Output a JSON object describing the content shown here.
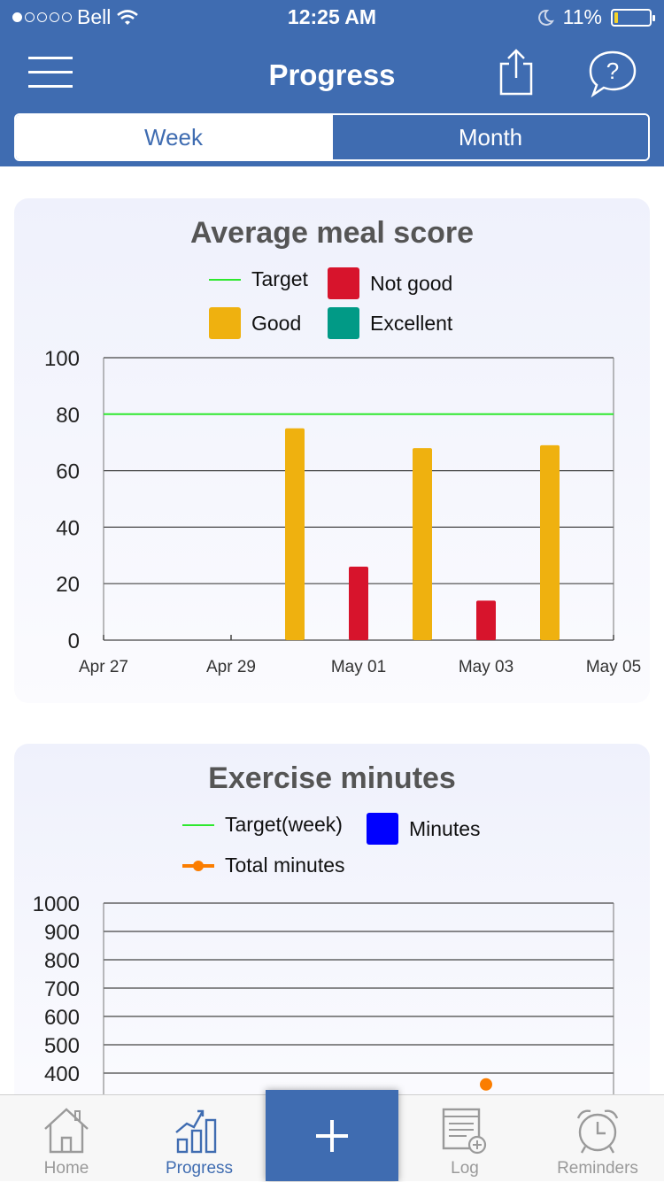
{
  "status_bar": {
    "carrier": "Bell",
    "signal_dots_filled": 1,
    "signal_dots_total": 5,
    "time": "12:25 AM",
    "battery": "11%",
    "battery_level": 0.11
  },
  "nav": {
    "title": "Progress",
    "menu_icon": "hamburger-icon",
    "share_icon": "share-icon",
    "help_icon": "help-bubble-icon"
  },
  "segment": {
    "options": [
      "Week",
      "Month"
    ],
    "selected": "Week"
  },
  "colors": {
    "brand": "#3f6cb1",
    "target": "#2ee82e",
    "not_good": "#d7142c",
    "good": "#efb10f",
    "excellent": "#019a86",
    "minutes": "#0000ff",
    "total_minutes": "#fb7d00"
  },
  "meal_card": {
    "title": "Average meal score",
    "legend": {
      "target": "Target",
      "not_good": "Not good",
      "good": "Good",
      "excellent": "Excellent"
    }
  },
  "exercise_card": {
    "title": "Exercise minutes",
    "legend": {
      "target_week": "Target(week)",
      "minutes": "Minutes",
      "total_minutes": "Total minutes"
    }
  },
  "chart_data": [
    {
      "type": "bar",
      "title": "Average meal score",
      "categories": [
        "Apr 27",
        "Apr 28",
        "Apr 29",
        "Apr 30",
        "May 01",
        "May 02",
        "May 03",
        "May 04",
        "May 05"
      ],
      "x_tick_labels": [
        "Apr 27",
        "Apr 29",
        "May 01",
        "May 03",
        "May 05"
      ],
      "bars": [
        {
          "date": "Apr 30",
          "value": 75,
          "rating": "Good"
        },
        {
          "date": "May 01",
          "value": 26,
          "rating": "Not good"
        },
        {
          "date": "May 02",
          "value": 68,
          "rating": "Good"
        },
        {
          "date": "May 03",
          "value": 14,
          "rating": "Not good"
        },
        {
          "date": "May 04",
          "value": 69,
          "rating": "Good"
        }
      ],
      "target": 80,
      "ylim": [
        0,
        100
      ],
      "y_ticks": [
        0,
        20,
        40,
        60,
        80,
        100
      ],
      "grid": true,
      "legend_position": "top"
    },
    {
      "type": "line",
      "title": "Exercise minutes",
      "ylim": [
        0,
        1000
      ],
      "y_ticks_visible": [
        400,
        500,
        600,
        700,
        800,
        900,
        1000
      ],
      "series": [
        {
          "name": "Minutes",
          "values": []
        },
        {
          "name": "Total minutes",
          "points": [
            {
              "date": "May 03",
              "value": 360
            }
          ]
        }
      ],
      "grid": true,
      "legend_position": "top"
    }
  ],
  "tabbar": {
    "items": [
      {
        "label": "Home",
        "icon": "home-icon"
      },
      {
        "label": "Progress",
        "icon": "bar-chart-icon",
        "active": true
      },
      {
        "label": "",
        "icon": "plus-icon"
      },
      {
        "label": "Log",
        "icon": "log-icon"
      },
      {
        "label": "Reminders",
        "icon": "alarm-clock-icon"
      }
    ]
  }
}
